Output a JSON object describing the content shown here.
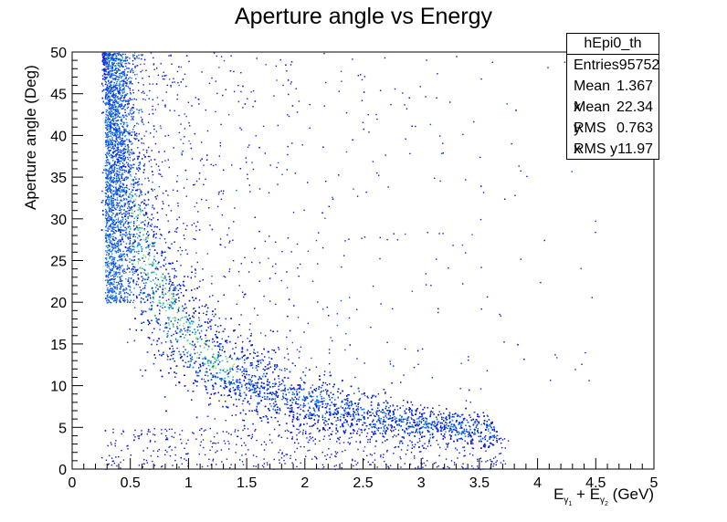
{
  "colors": {
    "palette": [
      "#0a14d2",
      "#0a4fe6",
      "#1689e0",
      "#1fb5c8",
      "#3ccf9a",
      "#7fe063",
      "#c3e83c"
    ]
  },
  "chart_data": {
    "type": "scatter",
    "title": "Aperture angle vs Energy",
    "ylabel": "Aperture angle (Deg)",
    "xlabel_parts": {
      "e1": "E",
      "g1": "γ",
      "s1": "1",
      "plus": " + ",
      "e2": "E",
      "g2": "γ",
      "s2": "2",
      "unit": " (GeV)"
    },
    "xlim": [
      0,
      5
    ],
    "ylim": [
      0,
      50
    ],
    "x_ticks": [
      "0",
      "0.5",
      "1",
      "1.5",
      "2",
      "2.5",
      "3",
      "3.5",
      "4",
      "4.5",
      "5"
    ],
    "y_ticks": [
      "0",
      "5",
      "10",
      "15",
      "20",
      "25",
      "30",
      "35",
      "40",
      "45",
      "50"
    ],
    "description_of_density": "2D histogram; density peaks near x≈0.85 GeV, y≈18 deg and follows a curve y ≈ 16/x, falling to ~5 deg at x≈3.5 GeV",
    "density_ridge": [
      {
        "x": 0.3,
        "y": 50
      },
      {
        "x": 0.5,
        "y": 30
      },
      {
        "x": 0.75,
        "y": 21
      },
      {
        "x": 1.0,
        "y": 16
      },
      {
        "x": 1.5,
        "y": 11
      },
      {
        "x": 2.0,
        "y": 8
      },
      {
        "x": 2.5,
        "y": 6.5
      },
      {
        "x": 3.0,
        "y": 5.5
      },
      {
        "x": 3.5,
        "y": 4.5
      }
    ]
  },
  "stats_box": {
    "name": "hEpi0_th",
    "rows": [
      {
        "label": "Entries",
        "value": "95752"
      },
      {
        "label": "Mean x",
        "value": "1.367"
      },
      {
        "label": "Mean y",
        "value": "22.34"
      },
      {
        "label": "RMS x",
        "value": "0.763"
      },
      {
        "label": "RMS y",
        "value": "11.97"
      }
    ]
  }
}
